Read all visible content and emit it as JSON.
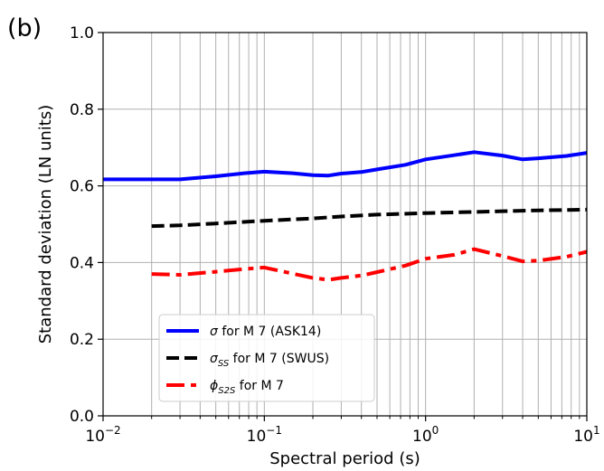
{
  "panel_label": "(b)",
  "chart_data": {
    "type": "line",
    "xlabel": "Spectral period (s)",
    "ylabel": "Standard deviation (LN units)",
    "xscale": "log",
    "xlim": [
      0.01,
      10
    ],
    "ylim": [
      0.0,
      1.0
    ],
    "grid": true,
    "legend_position": "lower-left",
    "x_ticks": [
      {
        "value": 0.01,
        "base": "10",
        "exp": "−2"
      },
      {
        "value": 0.1,
        "base": "10",
        "exp": "−1"
      },
      {
        "value": 1,
        "base": "10",
        "exp": "0"
      },
      {
        "value": 10,
        "base": "10",
        "exp": "1"
      }
    ],
    "y_ticks": [
      {
        "value": 0.0,
        "label": "0.0"
      },
      {
        "value": 0.2,
        "label": "0.2"
      },
      {
        "value": 0.4,
        "label": "0.4"
      },
      {
        "value": 0.6,
        "label": "0.6"
      },
      {
        "value": 0.8,
        "label": "0.8"
      },
      {
        "value": 1.0,
        "label": "1.0"
      }
    ],
    "series": [
      {
        "key": "sigma",
        "legend": {
          "symbol": "σ",
          "sub": "",
          "text": " for M 7 (ASK14)"
        },
        "color": "#0000ff",
        "dash": "solid",
        "x": [
          0.01,
          0.02,
          0.03,
          0.05,
          0.075,
          0.1,
          0.15,
          0.2,
          0.25,
          0.3,
          0.4,
          0.5,
          0.75,
          1,
          1.5,
          2,
          3,
          4,
          5,
          7.5,
          10
        ],
        "y": [
          0.617,
          0.617,
          0.617,
          0.625,
          0.633,
          0.637,
          0.633,
          0.628,
          0.627,
          0.632,
          0.636,
          0.643,
          0.655,
          0.669,
          0.68,
          0.688,
          0.679,
          0.669,
          0.672,
          0.678,
          0.686
        ]
      },
      {
        "key": "sigma_ss",
        "legend": {
          "symbol": "σ",
          "sub": "SS",
          "text": " for M 7 (SWUS)"
        },
        "color": "#000000",
        "dash": "dashed",
        "x": [
          0.02,
          0.03,
          0.05,
          0.1,
          0.2,
          0.3,
          0.5,
          1,
          2,
          3,
          5,
          10
        ],
        "y": [
          0.495,
          0.497,
          0.502,
          0.509,
          0.515,
          0.52,
          0.525,
          0.529,
          0.532,
          0.534,
          0.536,
          0.538
        ]
      },
      {
        "key": "phi_s2s",
        "legend": {
          "symbol": "ϕ",
          "sub": "S2S",
          "text": " for M 7"
        },
        "color": "#ff0000",
        "dash": "dashdot",
        "x": [
          0.02,
          0.03,
          0.05,
          0.075,
          0.1,
          0.15,
          0.2,
          0.25,
          0.3,
          0.4,
          0.5,
          0.75,
          1,
          1.5,
          2,
          3,
          4,
          5,
          7.5,
          10
        ],
        "y": [
          0.37,
          0.368,
          0.376,
          0.383,
          0.387,
          0.371,
          0.36,
          0.355,
          0.36,
          0.366,
          0.375,
          0.392,
          0.41,
          0.42,
          0.435,
          0.417,
          0.403,
          0.405,
          0.415,
          0.428
        ]
      }
    ]
  }
}
